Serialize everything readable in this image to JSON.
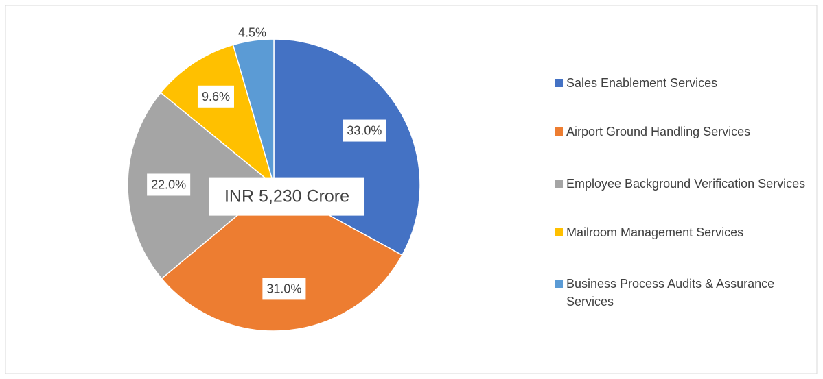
{
  "chart_data": {
    "type": "pie",
    "categories": [
      "Sales Enablement Services",
      "Airport Ground Handling Services",
      "Employee Background Verification Services",
      "Mailroom Management Services",
      "Business Process Audits & Assurance Services"
    ],
    "values": [
      33.0,
      31.0,
      22.0,
      9.6,
      4.5
    ],
    "value_labels": [
      "33.0%",
      "31.0%",
      "22.0%",
      "9.6%",
      "4.5%"
    ],
    "colors": [
      "#4472c4",
      "#ed7d31",
      "#a5a5a5",
      "#ffc000",
      "#5b9bd5"
    ],
    "annotation": "INR 5,230 Crore",
    "legend": "right"
  }
}
